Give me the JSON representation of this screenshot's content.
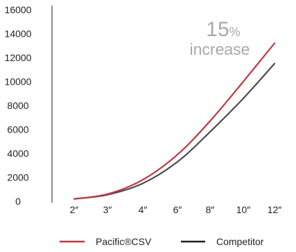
{
  "chart_data": {
    "type": "line",
    "categories": [
      "2″",
      "3″",
      "4″",
      "6″",
      "8″",
      "10″",
      "12″"
    ],
    "ylim": [
      0,
      16000
    ],
    "yticks": [
      0,
      2000,
      4000,
      6000,
      8000,
      10000,
      12000,
      14000,
      16000
    ],
    "grid": false,
    "legend_position": "bottom",
    "series": [
      {
        "name": "Pacific®CSV",
        "color": "#c0363e",
        "values": [
          200,
          600,
          1800,
          3900,
          6700,
          10000,
          13200
        ]
      },
      {
        "name": "Competitor",
        "color": "#4d4d4f",
        "values": [
          200,
          550,
          1500,
          3300,
          5800,
          8600,
          11500
        ]
      }
    ],
    "annotation": {
      "value": "15",
      "unit": "%",
      "text": "increase",
      "color": "#a7a9ac"
    }
  }
}
